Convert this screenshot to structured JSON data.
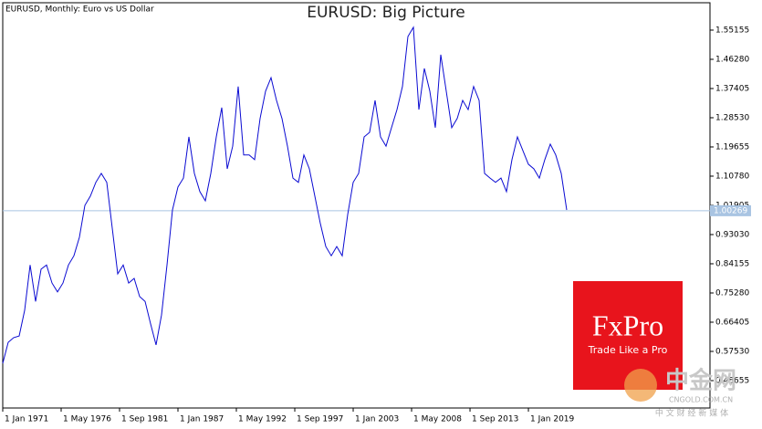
{
  "chart_data": {
    "type": "line",
    "title": "EURUSD: Big Picture",
    "subtitle": "EURUSD, Monthly:  Euro vs US Dollar",
    "color": "#0a0ad2",
    "x": [
      1971.0,
      1971.5,
      1972.0,
      1972.5,
      1973.0,
      1973.5,
      1974.0,
      1974.5,
      1975.0,
      1975.5,
      1976.0,
      1976.5,
      1977.0,
      1977.5,
      1978.0,
      1978.5,
      1979.0,
      1979.5,
      1980.0,
      1980.5,
      1981.0,
      1981.5,
      1982.0,
      1982.5,
      1983.0,
      1983.5,
      1984.0,
      1984.5,
      1985.0,
      1985.5,
      1986.0,
      1986.5,
      1987.0,
      1987.5,
      1988.0,
      1988.5,
      1989.0,
      1989.5,
      1990.0,
      1990.5,
      1991.0,
      1991.5,
      1992.0,
      1992.5,
      1993.0,
      1993.5,
      1994.0,
      1994.5,
      1995.0,
      1995.5,
      1996.0,
      1996.5,
      1997.0,
      1997.5,
      1998.0,
      1998.5,
      1999.0,
      1999.5,
      2000.0,
      2000.5,
      2001.0,
      2001.5,
      2002.0,
      2002.5,
      2003.0,
      2003.5,
      2004.0,
      2004.5,
      2005.0,
      2005.5,
      2006.0,
      2006.5,
      2007.0,
      2007.5,
      2008.0,
      2008.5,
      2009.0,
      2009.5,
      2010.0,
      2010.5,
      2011.0,
      2011.5,
      2012.0,
      2012.5,
      2013.0,
      2013.5,
      2014.0,
      2014.5,
      2015.0,
      2015.5,
      2016.0,
      2016.5,
      2017.0,
      2017.5,
      2018.0,
      2018.5,
      2019.0,
      2019.5,
      2020.0,
      2020.5,
      2021.0,
      2021.5,
      2022.0,
      2022.5
    ],
    "values": [
      0.539,
      0.603,
      0.617,
      0.622,
      0.7,
      0.838,
      0.727,
      0.825,
      0.838,
      0.783,
      0.756,
      0.783,
      0.838,
      0.866,
      0.922,
      1.019,
      1.047,
      1.089,
      1.116,
      1.089,
      0.95,
      0.811,
      0.838,
      0.783,
      0.797,
      0.742,
      0.727,
      0.659,
      0.595,
      0.686,
      0.838,
      1.005,
      1.075,
      1.102,
      1.227,
      1.116,
      1.061,
      1.033,
      1.116,
      1.227,
      1.316,
      1.13,
      1.199,
      1.38,
      1.172,
      1.172,
      1.158,
      1.283,
      1.366,
      1.407,
      1.338,
      1.283,
      1.199,
      1.102,
      1.089,
      1.172,
      1.13,
      1.047,
      0.964,
      0.894,
      0.866,
      0.894,
      0.866,
      0.991,
      1.089,
      1.116,
      1.227,
      1.241,
      1.338,
      1.227,
      1.199,
      1.255,
      1.31,
      1.38,
      1.532,
      1.56,
      1.31,
      1.435,
      1.366,
      1.255,
      1.477,
      1.366,
      1.255,
      1.283,
      1.338,
      1.31,
      1.38,
      1.338,
      1.116,
      1.102,
      1.089,
      1.102,
      1.061,
      1.158,
      1.227,
      1.185,
      1.144,
      1.13,
      1.102,
      1.158,
      1.205,
      1.172,
      1.116,
      1.005
    ],
    "xlim": [
      1971.0,
      2035.58
    ],
    "xticks": [
      {
        "value": 1971.0,
        "label": "1 Jan 1971"
      },
      {
        "value": 1976.333,
        "label": "1 May 1976"
      },
      {
        "value": 1981.667,
        "label": "1 Sep 1981"
      },
      {
        "value": 1987.0,
        "label": "1 Jan 1987"
      },
      {
        "value": 1992.333,
        "label": "1 May 1992"
      },
      {
        "value": 1997.667,
        "label": "1 Sep 1997"
      },
      {
        "value": 2003.0,
        "label": "1 Jan 2003"
      },
      {
        "value": 2008.333,
        "label": "1 May 2008"
      },
      {
        "value": 2013.667,
        "label": "1 Sep 2013"
      },
      {
        "value": 2019.0,
        "label": "1 Jan 2019"
      }
    ],
    "ylim": [
      0.4033,
      1.6347
    ],
    "yticks": [
      0.48655,
      {
        "value": 0.5753,
        "label": "0.57530"
      },
      0.66405,
      {
        "value": 0.7528,
        "label": "0.75280"
      },
      0.84155,
      {
        "value": 0.9303,
        "label": "0.93030"
      },
      1.01905,
      {
        "value": 1.1078,
        "label": "1.10780"
      },
      1.19655,
      {
        "value": 1.2853,
        "label": "1.28530"
      },
      1.37405,
      {
        "value": 1.4628,
        "label": "1.46280"
      },
      1.55155
    ],
    "current_price": 1.00269,
    "current_price_color": "#a9c4e2"
  },
  "branding": {
    "logo": "FxPro",
    "slogan": "Trade Like a Pro",
    "watermark": "中金网",
    "watermark_url": "CNGOLD.COM.CN",
    "watermark_tagline": "中 文 财 经 新 媒 体"
  }
}
